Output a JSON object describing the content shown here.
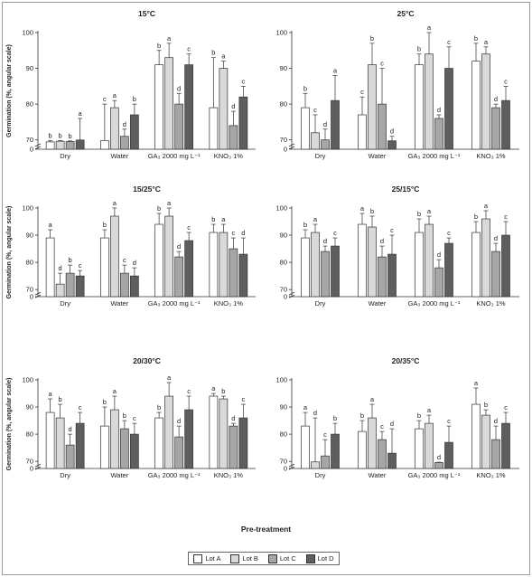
{
  "x_label": "Pre-treatment",
  "legend": [
    {
      "label": "Lot A",
      "color": "#ffffff"
    },
    {
      "label": "Lot B",
      "color": "#d9d9d9"
    },
    {
      "label": "Lot C",
      "color": "#a6a6a6"
    },
    {
      "label": "Lot D",
      "color": "#5e5e5e"
    }
  ],
  "chart_data": [
    {
      "type": "bar",
      "title": "15°C",
      "ylabel": "Germination (%, angular scale)",
      "yticks": [
        0,
        70,
        80,
        90,
        100
      ],
      "categories": [
        "Dry",
        "Water",
        "GA₃ 2000 mg L⁻¹",
        "KNO₃ 1%"
      ],
      "series": [
        {
          "name": "Lot A",
          "values": [
            55,
            65,
            91,
            79
          ],
          "errors": [
            10,
            15,
            4,
            14
          ],
          "letters": [
            "b",
            "c",
            "b",
            "b"
          ]
        },
        {
          "name": "Lot B",
          "values": [
            60,
            79,
            93,
            90
          ],
          "errors": [
            5,
            2,
            4,
            2
          ],
          "letters": [
            "b",
            "a",
            "a",
            "a"
          ]
        },
        {
          "name": "Lot C",
          "values": [
            58,
            71,
            80,
            74
          ],
          "errors": [
            4,
            2,
            3,
            4
          ],
          "letters": [
            "b",
            "d",
            "d",
            "d"
          ]
        },
        {
          "name": "Lot D",
          "values": [
            69,
            77,
            91,
            82
          ],
          "errors": [
            7,
            3,
            3,
            3
          ],
          "letters": [
            "a",
            "b",
            "c",
            "c"
          ]
        }
      ]
    },
    {
      "type": "bar",
      "title": "25°C",
      "ylabel": "",
      "yticks": [
        0,
        70,
        80,
        90,
        100
      ],
      "categories": [
        "Dry",
        "Water",
        "GA₃ 2000 mg L⁻¹",
        "KNO₃ 1%"
      ],
      "series": [
        {
          "name": "Lot A",
          "values": [
            79,
            77,
            91,
            92
          ],
          "errors": [
            4,
            5,
            3,
            5
          ],
          "letters": [
            "b",
            "c",
            "b",
            "b"
          ]
        },
        {
          "name": "Lot B",
          "values": [
            72,
            91,
            94,
            94
          ],
          "errors": [
            5,
            6,
            7,
            2
          ],
          "letters": [
            "c",
            "b",
            "a",
            "a"
          ]
        },
        {
          "name": "Lot C",
          "values": [
            70,
            80,
            76,
            79
          ],
          "errors": [
            3,
            10,
            1,
            1
          ],
          "letters": [
            "d",
            "c",
            "d",
            "d"
          ]
        },
        {
          "name": "Lot D",
          "values": [
            81,
            63,
            90,
            81
          ],
          "errors": [
            7,
            8,
            6,
            4
          ],
          "letters": [
            "a",
            "d",
            "c",
            "c"
          ]
        }
      ]
    },
    {
      "type": "bar",
      "title": "15/25°C",
      "ylabel": "Germination (%, angular scale)",
      "yticks": [
        0,
        70,
        80,
        90,
        100
      ],
      "categories": [
        "Dry",
        "Water",
        "GA₃ 2000 mg L⁻¹",
        "KNO₃ 1%"
      ],
      "series": [
        {
          "name": "Lot A",
          "values": [
            89,
            89,
            94,
            91
          ],
          "errors": [
            3,
            3,
            4,
            3
          ],
          "letters": [
            "a",
            "b",
            "b",
            "b"
          ]
        },
        {
          "name": "Lot B",
          "values": [
            72,
            97,
            97,
            91
          ],
          "errors": [
            4,
            3,
            5,
            3
          ],
          "letters": [
            "d",
            "a",
            "a",
            "a"
          ]
        },
        {
          "name": "Lot C",
          "values": [
            76,
            76,
            82,
            85
          ],
          "errors": [
            3,
            3,
            2,
            4
          ],
          "letters": [
            "b",
            "c",
            "d",
            "c"
          ]
        },
        {
          "name": "Lot D",
          "values": [
            75,
            75,
            88,
            83
          ],
          "errors": [
            2,
            3,
            3,
            6
          ],
          "letters": [
            "c",
            "d",
            "c",
            "d"
          ]
        }
      ]
    },
    {
      "type": "bar",
      "title": "25/15°C",
      "ylabel": "",
      "yticks": [
        0,
        70,
        80,
        90,
        100
      ],
      "categories": [
        "Dry",
        "Water",
        "GA₃ 2000 mg L⁻¹",
        "KNO₃ 1%"
      ],
      "series": [
        {
          "name": "Lot A",
          "values": [
            89,
            94,
            91,
            91
          ],
          "errors": [
            3,
            4,
            5,
            4
          ],
          "letters": [
            "b",
            "a",
            "b",
            "b"
          ]
        },
        {
          "name": "Lot B",
          "values": [
            91,
            93,
            94,
            96
          ],
          "errors": [
            3,
            4,
            3,
            3
          ],
          "letters": [
            "a",
            "b",
            "a",
            "a"
          ]
        },
        {
          "name": "Lot C",
          "values": [
            84,
            82,
            78,
            84
          ],
          "errors": [
            2,
            4,
            3,
            3
          ],
          "letters": [
            "d",
            "d",
            "d",
            "d"
          ]
        },
        {
          "name": "Lot D",
          "values": [
            86,
            83,
            87,
            90
          ],
          "errors": [
            3,
            7,
            2,
            5
          ],
          "letters": [
            "c",
            "c",
            "c",
            "c"
          ]
        }
      ]
    },
    {
      "type": "bar",
      "title": "20/30°C",
      "ylabel": "Germination (%, angular scale)",
      "yticks": [
        0,
        70,
        80,
        90,
        100
      ],
      "categories": [
        "Dry",
        "Water",
        "GA₃ 2000 mg L⁻¹",
        "KNO₃ 1%"
      ],
      "series": [
        {
          "name": "Lot A",
          "values": [
            88,
            83,
            86,
            94
          ],
          "errors": [
            5,
            7,
            2,
            1
          ],
          "letters": [
            "a",
            "b",
            "b",
            "a"
          ]
        },
        {
          "name": "Lot B",
          "values": [
            86,
            89,
            94,
            93
          ],
          "errors": [
            5,
            5,
            5,
            1
          ],
          "letters": [
            "b",
            "a",
            "a",
            "b"
          ]
        },
        {
          "name": "Lot C",
          "values": [
            76,
            82,
            79,
            83
          ],
          "errors": [
            4,
            3,
            4,
            1
          ],
          "letters": [
            "d",
            "b",
            "d",
            "d"
          ]
        },
        {
          "name": "Lot D",
          "values": [
            84,
            80,
            89,
            86
          ],
          "errors": [
            4,
            4,
            5,
            5
          ],
          "letters": [
            "c",
            "c",
            "c",
            "c"
          ]
        }
      ]
    },
    {
      "type": "bar",
      "title": "20/35°C",
      "ylabel": "",
      "yticks": [
        0,
        70,
        80,
        90,
        100
      ],
      "categories": [
        "Dry",
        "Water",
        "GA₃ 2000 mg L⁻¹",
        "KNO₃ 1%"
      ],
      "series": [
        {
          "name": "Lot A",
          "values": [
            83,
            81,
            82,
            91
          ],
          "errors": [
            5,
            4,
            3,
            6
          ],
          "letters": [
            "a",
            "b",
            "b",
            "a"
          ]
        },
        {
          "name": "Lot B",
          "values": [
            65,
            86,
            84,
            87
          ],
          "errors": [
            21,
            5,
            3,
            2
          ],
          "letters": [
            "d",
            "a",
            "a",
            "b"
          ]
        },
        {
          "name": "Lot C",
          "values": [
            72,
            78,
            59,
            78
          ],
          "errors": [
            6,
            3,
            3,
            5
          ],
          "letters": [
            "c",
            "c",
            "d",
            "d"
          ]
        },
        {
          "name": "Lot D",
          "values": [
            80,
            73,
            77,
            84
          ],
          "errors": [
            4,
            9,
            6,
            4
          ],
          "letters": [
            "b",
            "d",
            "c",
            "c"
          ]
        }
      ]
    }
  ]
}
